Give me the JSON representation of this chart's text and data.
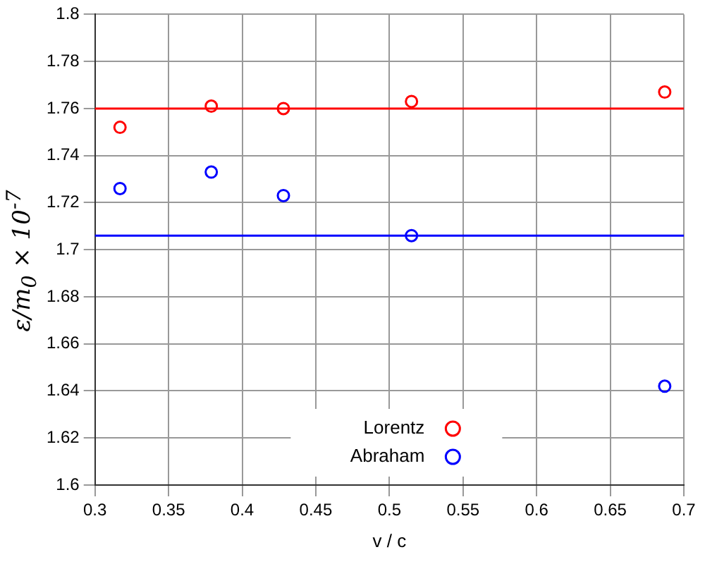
{
  "chart_data": {
    "type": "scatter",
    "xlabel": "v / c",
    "ylabel": "ε/m$_{0}$ × 10$^{-7}$",
    "xlim": [
      0.3,
      0.7
    ],
    "xticks": [
      0.3,
      0.35,
      0.4,
      0.45,
      0.5,
      0.55,
      0.6,
      0.65,
      0.7
    ],
    "ylim": [
      1.6,
      1.8
    ],
    "yticks": [
      1.6,
      1.62,
      1.64,
      1.66,
      1.68,
      1.7,
      1.72,
      1.74,
      1.76,
      1.78,
      1.8
    ],
    "grid": true,
    "legend": "bottom",
    "marker": "circle",
    "series": [
      {
        "name": "Lorentz",
        "color": "#ff0000",
        "x": [
          0.317,
          0.379,
          0.428,
          0.515,
          0.687
        ],
        "values": [
          1.752,
          1.761,
          1.76,
          1.763,
          1.767
        ]
      },
      {
        "name": "Abraham",
        "color": "#0000ff",
        "x": [
          0.317,
          0.379,
          0.428,
          0.515,
          0.687
        ],
        "values": [
          1.726,
          1.733,
          1.723,
          1.706,
          1.642
        ]
      }
    ],
    "ref_lines": [
      {
        "axis": "y",
        "value": 1.76,
        "color": "#ff0000",
        "line_style": "solid"
      },
      {
        "axis": "y",
        "value": 1.706,
        "color": "#0000ff",
        "line_style": "solid"
      }
    ]
  }
}
